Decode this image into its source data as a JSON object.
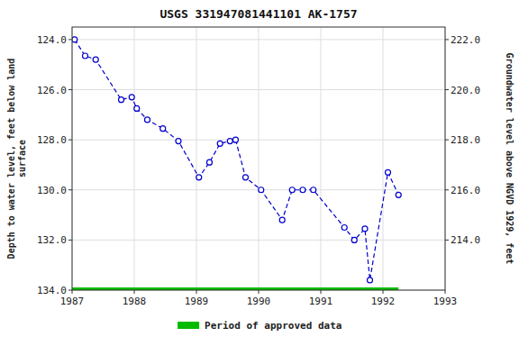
{
  "chart_data": {
    "type": "line",
    "title": "USGS 331947081441101 AK-1757",
    "x": [
      1987.04,
      1987.21,
      1987.38,
      1987.79,
      1987.96,
      1988.04,
      1988.21,
      1988.46,
      1988.71,
      1989.04,
      1989.21,
      1989.38,
      1989.54,
      1989.63,
      1989.79,
      1990.04,
      1990.38,
      1990.54,
      1990.71,
      1990.88,
      1991.38,
      1991.54,
      1991.71,
      1991.79,
      1992.08,
      1992.25
    ],
    "series": [
      {
        "values": [
          124.0,
          124.65,
          124.8,
          126.4,
          126.3,
          126.75,
          127.2,
          127.55,
          128.05,
          129.5,
          128.9,
          128.15,
          128.05,
          128.0,
          129.5,
          130.0,
          131.2,
          130.0,
          130.0,
          130.0,
          131.5,
          132.0,
          131.55,
          133.6,
          129.3,
          130.2
        ],
        "color": "#0000cc",
        "marker": "circle",
        "line_style": "dashed"
      }
    ],
    "approved_period": {
      "name": "Period of approved data",
      "start": 1987.0,
      "end": 1992.25,
      "y": 134.0,
      "color": "#00bb00"
    },
    "xlim": [
      1987,
      1993
    ],
    "xticks": [
      1987,
      1988,
      1989,
      1990,
      1991,
      1992,
      1993
    ],
    "ylim": [
      134.0,
      123.5
    ],
    "yticks": [
      {
        "value": 124.0,
        "label": "124.0"
      },
      {
        "value": 126.0,
        "label": "126.0"
      },
      {
        "value": 128.0,
        "label": "128.0"
      },
      {
        "value": 130.0,
        "label": "130.0"
      },
      {
        "value": 132.0,
        "label": "132.0"
      },
      {
        "value": 134.0,
        "label": "134.0"
      }
    ],
    "y2lim": [
      212.0,
      222.5
    ],
    "y2ticks": [
      {
        "value": 222.0,
        "label": "222.0"
      },
      {
        "value": 220.0,
        "label": "220.0"
      },
      {
        "value": 218.0,
        "label": "218.0"
      },
      {
        "value": 216.0,
        "label": "216.0"
      },
      {
        "value": 214.0,
        "label": "214.0"
      }
    ],
    "y_label": "Depth to water level, feet below land\nsurface",
    "y2_label": "Groundwater level above NGVD 1929, feet",
    "grid": true,
    "legend": "bottom"
  }
}
